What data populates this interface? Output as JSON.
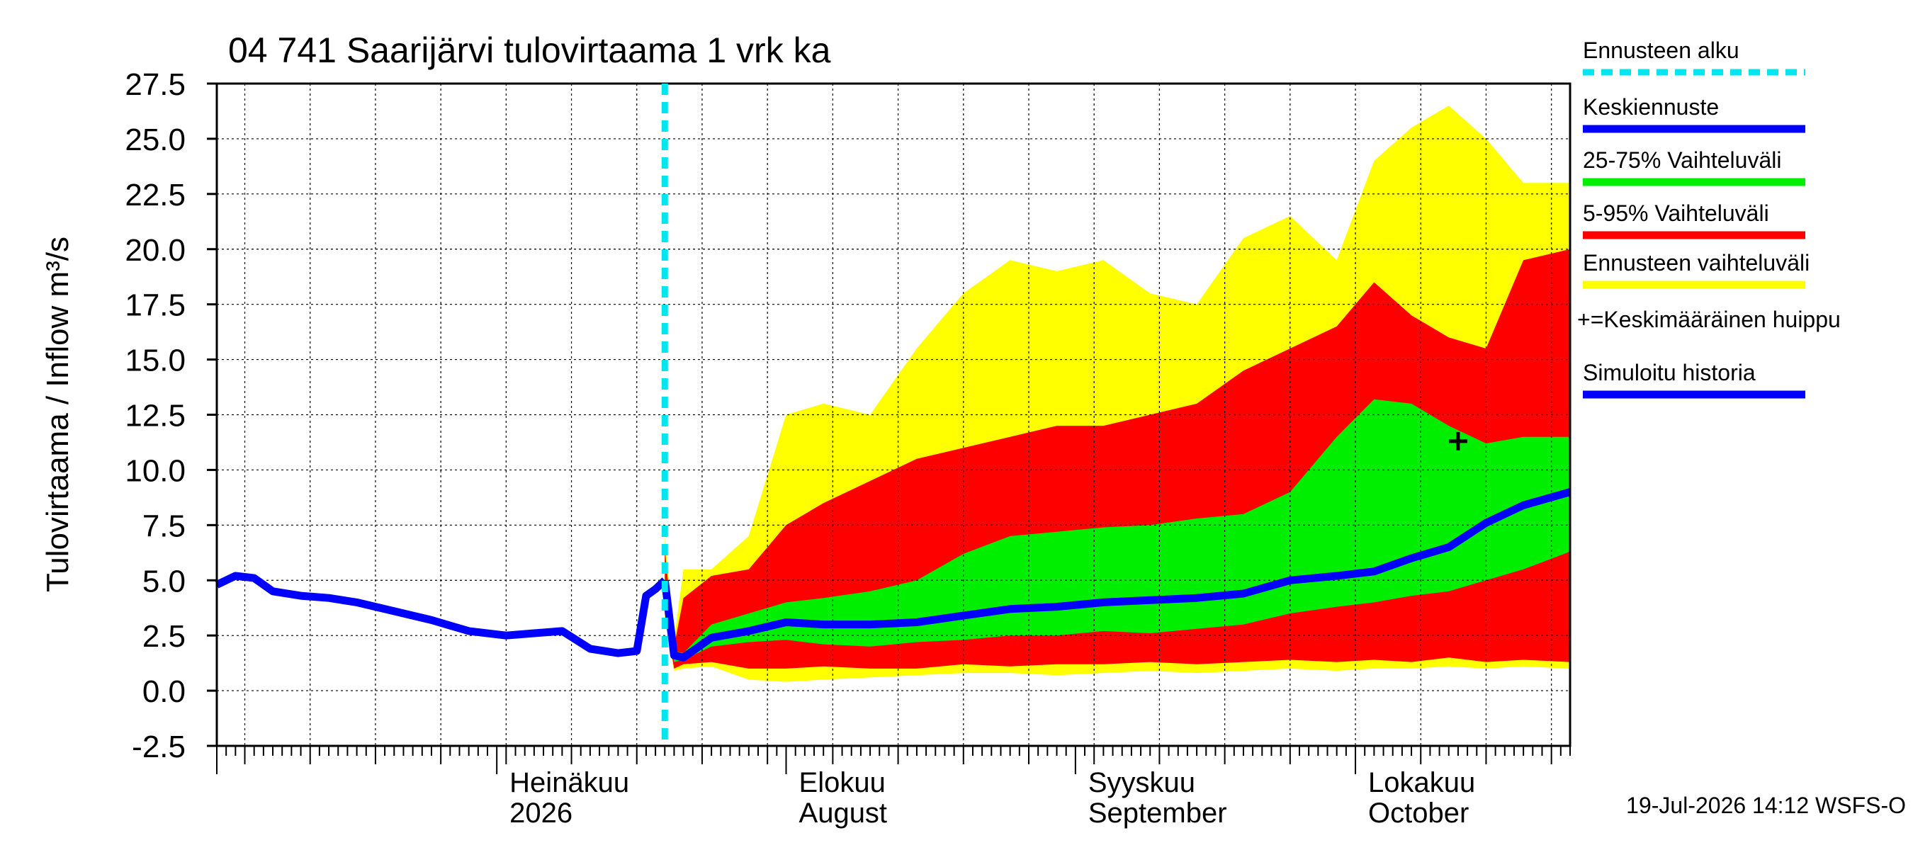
{
  "chart_data": {
    "type": "area",
    "title": "04 741 Saarijärvi tulovirtaama 1 vrk ka",
    "ylabel": "Tulovirtaama / Inflow   m³/s",
    "ylim": [
      -2.5,
      27.5
    ],
    "yticks": [
      "27.5",
      "25.0",
      "22.5",
      "20.0",
      "17.5",
      "15.0",
      "12.5",
      "10.0",
      "7.5",
      "5.0",
      "2.5",
      "0.0",
      "-2.5"
    ],
    "xlim": [
      "2026-06-01",
      "2026-10-24"
    ],
    "month_labels": [
      {
        "date": "2026-07-01",
        "fi": "Heinäkuu",
        "en": "2026"
      },
      {
        "date": "2026-08-01",
        "fi": "Elokuu",
        "en": "August"
      },
      {
        "date": "2026-09-01",
        "fi": "Syyskuu",
        "en": "September"
      },
      {
        "date": "2026-10-01",
        "fi": "Lokakuu",
        "en": "October"
      }
    ],
    "forecast_start": "2026-07-19",
    "legend": [
      {
        "label": "Ennusteen alku",
        "color": "#00e5ee",
        "style": "dashed"
      },
      {
        "label": "Keskiennuste",
        "color": "#0000ff",
        "style": "line"
      },
      {
        "label": "25-75% Vaihteluväli",
        "color": "#00ee00",
        "style": "band"
      },
      {
        "label": "5-95% Vaihteluväli",
        "color": "#ff0000",
        "style": "band"
      },
      {
        "label": "Ennusteen vaihteluväli",
        "color": "#ffff00",
        "style": "band"
      },
      {
        "label": "+=Keskimääräinen huippu",
        "color": "#000000",
        "style": "none"
      },
      {
        "label": "Simuloitu historia",
        "color": "#0000ff",
        "style": "line"
      }
    ],
    "colors": {
      "yellow": "#ffff00",
      "red": "#ff0000",
      "green": "#00ee00",
      "blue": "#0000ff",
      "cyan": "#00e5ee"
    },
    "series": [
      {
        "name": "Simuloitu historia",
        "x": [
          "2026-06-01",
          "2026-06-03",
          "2026-06-05",
          "2026-06-07",
          "2026-06-10",
          "2026-06-13",
          "2026-06-16",
          "2026-06-20",
          "2026-06-24",
          "2026-06-28",
          "2026-07-02",
          "2026-07-05",
          "2026-07-08",
          "2026-07-11",
          "2026-07-14",
          "2026-07-16",
          "2026-07-17",
          "2026-07-18",
          "2026-07-19"
        ],
        "y": [
          4.8,
          5.2,
          5.1,
          4.5,
          4.3,
          4.2,
          4.0,
          3.6,
          3.2,
          2.7,
          2.5,
          2.6,
          2.7,
          1.9,
          1.7,
          1.8,
          4.3,
          4.6,
          5.0
        ]
      },
      {
        "name": "Keskiennuste",
        "x": [
          "2026-07-19",
          "2026-07-20",
          "2026-07-21",
          "2026-07-24",
          "2026-07-28",
          "2026-08-01",
          "2026-08-05",
          "2026-08-10",
          "2026-08-15",
          "2026-08-20",
          "2026-08-25",
          "2026-08-30",
          "2026-09-04",
          "2026-09-09",
          "2026-09-14",
          "2026-09-19",
          "2026-09-24",
          "2026-09-29",
          "2026-10-03",
          "2026-10-07",
          "2026-10-11",
          "2026-10-15",
          "2026-10-19",
          "2026-10-24"
        ],
        "y": [
          5.0,
          1.6,
          1.5,
          2.4,
          2.7,
          3.1,
          3.0,
          3.0,
          3.1,
          3.4,
          3.7,
          3.8,
          4.0,
          4.1,
          4.2,
          4.4,
          5.0,
          5.2,
          5.4,
          6.0,
          6.5,
          7.6,
          8.4,
          9.0
        ]
      },
      {
        "name": "25-75% Vaihteluväli",
        "x": [
          "2026-07-19",
          "2026-07-20",
          "2026-07-21",
          "2026-07-24",
          "2026-07-28",
          "2026-08-01",
          "2026-08-05",
          "2026-08-10",
          "2026-08-15",
          "2026-08-20",
          "2026-08-25",
          "2026-08-30",
          "2026-09-04",
          "2026-09-09",
          "2026-09-14",
          "2026-09-19",
          "2026-09-24",
          "2026-09-29",
          "2026-10-03",
          "2026-10-07",
          "2026-10-11",
          "2026-10-15",
          "2026-10-19",
          "2026-10-24"
        ],
        "low": [
          4.0,
          1.3,
          1.4,
          2.0,
          2.2,
          2.3,
          2.1,
          2.0,
          2.2,
          2.3,
          2.5,
          2.5,
          2.7,
          2.6,
          2.8,
          3.0,
          3.5,
          3.8,
          4.0,
          4.3,
          4.5,
          5.0,
          5.5,
          6.3
        ],
        "high": [
          5.2,
          1.8,
          1.7,
          3.0,
          3.5,
          4.0,
          4.2,
          4.5,
          5.0,
          6.2,
          7.0,
          7.2,
          7.4,
          7.5,
          7.8,
          8.0,
          9.0,
          11.5,
          13.2,
          13.0,
          12.0,
          11.2,
          11.5,
          11.5
        ]
      },
      {
        "name": "5-95% Vaihteluväli",
        "x": [
          "2026-07-19",
          "2026-07-20",
          "2026-07-21",
          "2026-07-24",
          "2026-07-28",
          "2026-08-01",
          "2026-08-05",
          "2026-08-10",
          "2026-08-15",
          "2026-08-20",
          "2026-08-25",
          "2026-08-30",
          "2026-09-04",
          "2026-09-09",
          "2026-09-14",
          "2026-09-19",
          "2026-09-24",
          "2026-09-29",
          "2026-10-03",
          "2026-10-07",
          "2026-10-11",
          "2026-10-15",
          "2026-10-19",
          "2026-10-24"
        ],
        "low": [
          3.5,
          1.0,
          1.2,
          1.3,
          1.0,
          1.0,
          1.1,
          1.0,
          1.0,
          1.2,
          1.1,
          1.2,
          1.2,
          1.3,
          1.2,
          1.3,
          1.4,
          1.3,
          1.4,
          1.3,
          1.5,
          1.3,
          1.4,
          1.3
        ],
        "high": [
          6.5,
          2.0,
          4.2,
          5.2,
          5.5,
          7.5,
          8.5,
          9.5,
          10.5,
          11.0,
          11.5,
          12.0,
          12.0,
          12.5,
          13.0,
          14.5,
          15.5,
          16.5,
          18.5,
          17.0,
          16.0,
          15.5,
          19.5,
          20.0
        ]
      },
      {
        "name": "Ennusteen vaihteluväli",
        "x": [
          "2026-07-19",
          "2026-07-20",
          "2026-07-21",
          "2026-07-24",
          "2026-07-28",
          "2026-08-01",
          "2026-08-05",
          "2026-08-10",
          "2026-08-15",
          "2026-08-20",
          "2026-08-25",
          "2026-08-30",
          "2026-09-04",
          "2026-09-09",
          "2026-09-14",
          "2026-09-19",
          "2026-09-24",
          "2026-09-29",
          "2026-10-03",
          "2026-10-07",
          "2026-10-11",
          "2026-10-15",
          "2026-10-19",
          "2026-10-24"
        ],
        "low": [
          3.2,
          0.9,
          1.0,
          1.1,
          0.5,
          0.4,
          0.5,
          0.6,
          0.7,
          0.8,
          0.8,
          0.7,
          0.8,
          0.9,
          0.8,
          0.9,
          1.0,
          0.9,
          1.0,
          1.0,
          1.1,
          1.0,
          1.1,
          1.0
        ],
        "high": [
          7.0,
          2.3,
          5.5,
          5.5,
          7.0,
          12.5,
          13.0,
          12.5,
          15.5,
          18.0,
          19.5,
          19.0,
          19.5,
          18.0,
          17.5,
          20.5,
          21.5,
          19.5,
          24.0,
          25.5,
          26.5,
          25.0,
          23.0,
          23.0
        ]
      }
    ],
    "average_peak": {
      "x": "2026-10-12",
      "y": 11.3
    },
    "footer": "19-Jul-2026 14:12 WSFS-O"
  }
}
